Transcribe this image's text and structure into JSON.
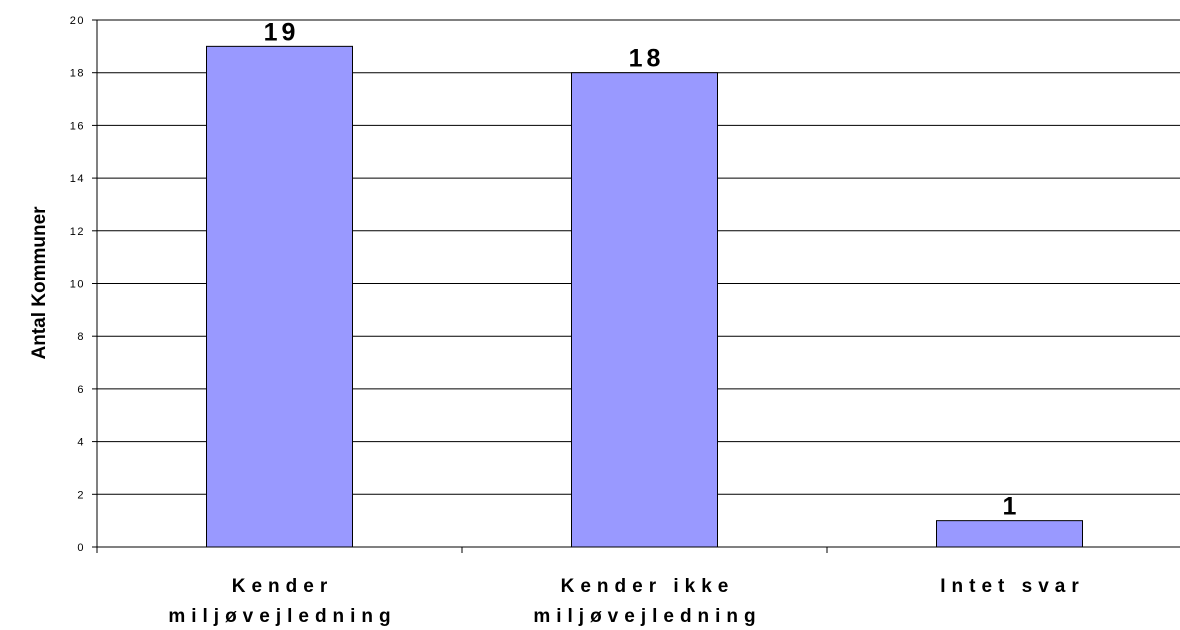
{
  "chart_data": {
    "type": "bar",
    "categories": [
      [
        "Kender",
        "miljøvejledning"
      ],
      [
        "Kender ikke",
        "miljøvejledning"
      ],
      [
        "Intet svar"
      ]
    ],
    "values": [
      19,
      18,
      1
    ],
    "data_labels": [
      "19",
      "18",
      "1"
    ],
    "title": "",
    "xlabel": "",
    "ylabel": "Antal Kommuner",
    "ylim": [
      0,
      20
    ],
    "yticks": [
      0,
      2,
      4,
      6,
      8,
      10,
      12,
      14,
      16,
      18,
      20
    ],
    "grid": true,
    "legend": "none",
    "bar_color": "#9999ff",
    "bar_edge_color": "#000000"
  }
}
